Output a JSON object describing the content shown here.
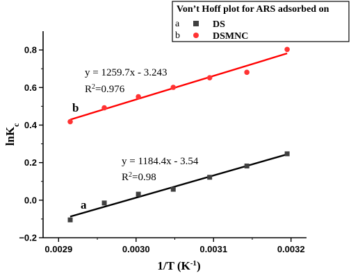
{
  "chart_data": {
    "type": "scatter",
    "title": "",
    "xlabel": "1/T (K",
    "xlabel_sup": "-1",
    "xlabel_end": ")",
    "ylabel": "lnK",
    "ylabel_sub": "c",
    "xlim": [
      0.00288,
      0.00322
    ],
    "ylim": [
      -0.2,
      0.9
    ],
    "xticks": [
      0.0029,
      0.003,
      0.0031,
      0.0032
    ],
    "xtick_labels": [
      "0.0029",
      "0.0030",
      "0.0031",
      "0.0032"
    ],
    "yticks": [
      -0.2,
      0.0,
      0.2,
      0.4,
      0.6,
      0.8
    ],
    "ytick_labels": [
      "−0.2",
      "0.0",
      "0.2",
      "0.4",
      "0.6",
      "0.8"
    ],
    "grid": false,
    "legend": {
      "title": "Von’t Hoff  plot for ARS adsorbed on",
      "position": "top-right",
      "entries": [
        {
          "key": "a",
          "name": "DS"
        },
        {
          "key": "b",
          "name": "DSMNC"
        }
      ]
    },
    "series": [
      {
        "key": "a",
        "name": "DS",
        "marker": "square",
        "color": "#404040",
        "fit_color": "#000000",
        "x": [
          0.002915,
          0.002959,
          0.003003,
          0.003048,
          0.003095,
          0.003143,
          0.003195
        ],
        "y": [
          -0.105,
          -0.015,
          0.032,
          0.058,
          0.122,
          0.182,
          0.247
        ],
        "fit": {
          "slope": 1184.4,
          "intercept": -3.54,
          "x_range": [
            0.002915,
            0.003195
          ]
        },
        "equation": "y = 1184.4x - 3.54",
        "r2_label": "R",
        "r2_sup": "2",
        "r2_value": "=0.98"
      },
      {
        "key": "b",
        "name": "DSMNC",
        "marker": "circle",
        "color": "#ff3333",
        "fit_color": "#ff0000",
        "x": [
          0.002915,
          0.002959,
          0.003003,
          0.003048,
          0.003095,
          0.003143,
          0.003195
        ],
        "y": [
          0.418,
          0.492,
          0.551,
          0.601,
          0.652,
          0.681,
          0.803
        ],
        "fit": {
          "slope": 1259.7,
          "intercept": -3.243,
          "x_range": [
            0.002915,
            0.003195
          ]
        },
        "equation": "y = 1259.7x - 3.243",
        "r2_label": "R",
        "r2_sup": "2",
        "r2_value": "=0.976"
      }
    ]
  }
}
